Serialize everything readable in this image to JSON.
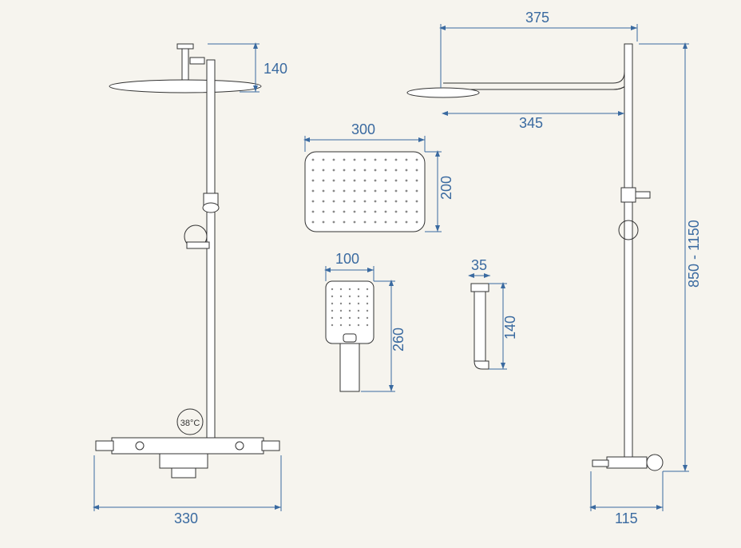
{
  "diagram": {
    "type": "technical-drawing",
    "background_color": "#f6f4ee",
    "stroke_color": "#333333",
    "dimension_color": "#3a6aa0",
    "dimension_fontsize": 18,
    "temperature_label": "38°C",
    "dimensions": {
      "arm_top": "140",
      "arm_span": "375",
      "arm_reach": "345",
      "head_width": "300",
      "head_height": "200",
      "hand_width": "100",
      "hand_height": "260",
      "bracket_width": "35",
      "bracket_height": "140",
      "total_height": "850 - 1150",
      "base_width_left": "330",
      "base_width_right": "115"
    }
  }
}
